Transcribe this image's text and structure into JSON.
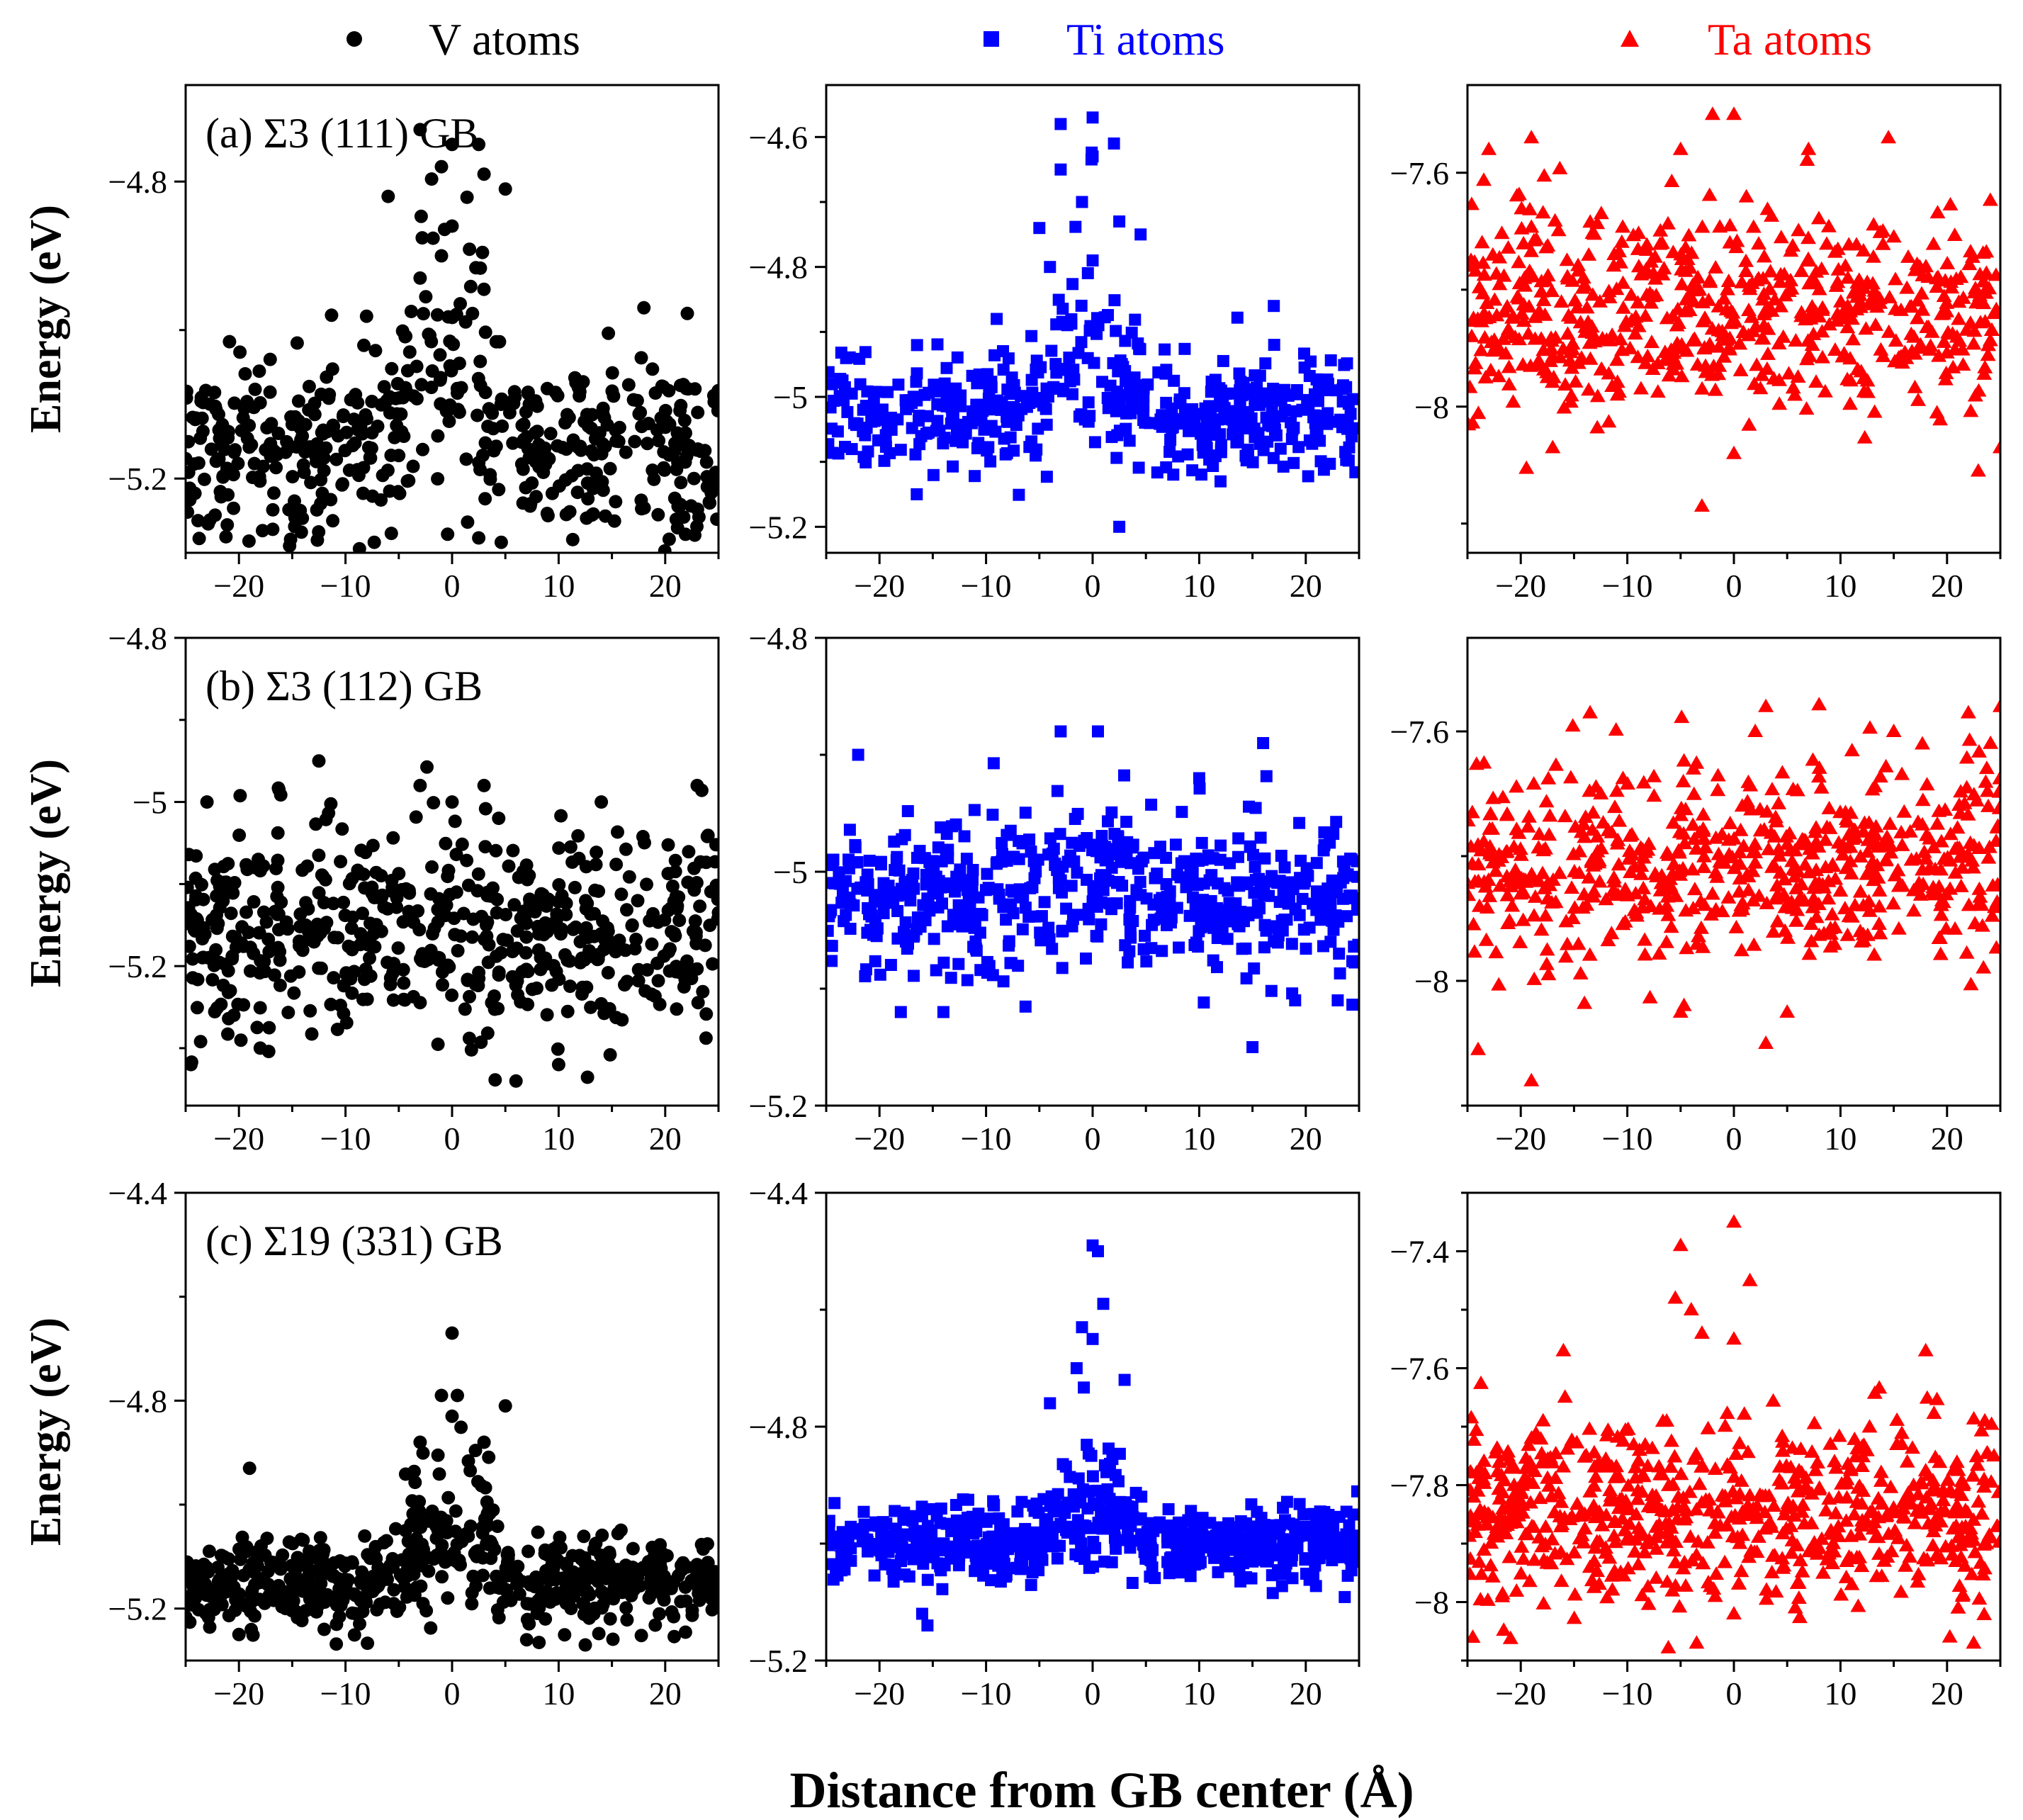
{
  "figure": {
    "xlabel": "Distance from GB center (Å)",
    "ylabel": "Energy (eV)",
    "legend": [
      {
        "label": "V atoms",
        "color": "#000000",
        "marker": "circle"
      },
      {
        "label": "Ti atoms",
        "color": "#0000ff",
        "marker": "square"
      },
      {
        "label": "Ta atoms",
        "color": "#ff0000",
        "marker": "triangle"
      }
    ]
  },
  "chart_data": [
    {
      "type": "scatter",
      "row": 0,
      "col": 0,
      "annotation": "(a) Σ3 (111) GB",
      "series_name": "V atoms",
      "color": "#000000",
      "marker": "circle",
      "xlim": [
        -25,
        25
      ],
      "ylim": [
        -5.3,
        -4.67
      ],
      "yticks": [
        -5.2,
        -4.8
      ],
      "xticks": [
        -20,
        -10,
        0,
        10,
        20
      ],
      "baseline": -5.16,
      "spread": 0.06,
      "peak_height": 0.38,
      "peak_width": 2.8,
      "n_points": 520,
      "highlights": [
        [
          -3,
          -4.73
        ],
        [
          0,
          -4.75
        ],
        [
          2.5,
          -4.75
        ],
        [
          -1,
          -4.78
        ],
        [
          3,
          -4.79
        ],
        [
          -6,
          -4.82
        ],
        [
          5,
          -4.81
        ],
        [
          -1,
          -4.9
        ],
        [
          0,
          -4.86
        ],
        [
          -3,
          -4.93
        ],
        [
          2.5,
          -5.28
        ],
        [
          9,
          -5.25
        ],
        [
          18,
          -4.97
        ]
      ]
    },
    {
      "type": "scatter",
      "row": 0,
      "col": 1,
      "annotation": "",
      "series_name": "Ti atoms",
      "color": "#0000ff",
      "marker": "square",
      "xlim": [
        -25,
        25
      ],
      "ylim": [
        -5.24,
        -4.52
      ],
      "yticks": [
        -5.2,
        -5.0,
        -4.8,
        -4.6
      ],
      "xticks": [
        -20,
        -10,
        0,
        10,
        20
      ],
      "baseline": -5.03,
      "spread": 0.045,
      "peak_height": 0.38,
      "peak_width": 2.6,
      "n_points": 520,
      "highlights": [
        [
          -3,
          -4.58
        ],
        [
          0,
          -4.57
        ],
        [
          2,
          -4.61
        ],
        [
          -3,
          -4.65
        ],
        [
          0,
          -4.63
        ],
        [
          -1,
          -4.7
        ],
        [
          -5,
          -4.74
        ],
        [
          2.5,
          -4.73
        ],
        [
          4.5,
          -4.75
        ],
        [
          -4,
          -4.8
        ],
        [
          0,
          -4.79
        ],
        [
          -9,
          -4.88
        ],
        [
          2.5,
          -5.2
        ],
        [
          12,
          -5.13
        ],
        [
          17,
          -4.86
        ]
      ]
    },
    {
      "type": "scatter",
      "row": 0,
      "col": 2,
      "annotation": "",
      "series_name": "Ta atoms",
      "color": "#ff0000",
      "marker": "triangle",
      "xlim": [
        -25,
        25
      ],
      "ylim": [
        -8.25,
        -7.45
      ],
      "yticks": [
        -8.0,
        -7.6
      ],
      "xticks": [
        -20,
        -10,
        0,
        10,
        20
      ],
      "baseline": -7.84,
      "spread": 0.085,
      "peak_height": 0.0,
      "peak_width": 3,
      "n_points": 620,
      "highlights": [
        [
          -2,
          -7.5
        ],
        [
          0,
          -7.5
        ],
        [
          -19,
          -7.54
        ],
        [
          -23,
          -7.56
        ],
        [
          14.5,
          -7.54
        ],
        [
          7,
          -7.56
        ],
        [
          -5,
          -7.56
        ],
        [
          -3,
          -8.17
        ],
        [
          -17,
          -8.07
        ],
        [
          0,
          -8.08
        ],
        [
          25,
          -8.07
        ]
      ]
    },
    {
      "type": "scatter",
      "row": 1,
      "col": 0,
      "annotation": "(b) Σ3 (112) GB",
      "series_name": "V atoms",
      "color": "#000000",
      "marker": "circle",
      "xlim": [
        -25,
        25
      ],
      "ylim": [
        -5.37,
        -4.8
      ],
      "yticks": [
        -5.2,
        -5.0,
        -4.8
      ],
      "xticks": [
        -20,
        -10,
        0,
        10,
        20
      ],
      "baseline": -5.15,
      "spread": 0.065,
      "peak_height": 0.0,
      "peak_width": 3,
      "n_points": 560,
      "highlights": [
        [
          -12.5,
          -4.95
        ],
        [
          -3,
          -4.98
        ],
        [
          3,
          -4.98
        ],
        [
          -23,
          -5.0
        ],
        [
          0,
          -5.0
        ],
        [
          14,
          -5.0
        ],
        [
          23,
          -4.98
        ],
        [
          6,
          -5.34
        ],
        [
          10,
          -5.32
        ],
        [
          -24.5,
          -5.32
        ],
        [
          -18,
          -5.3
        ]
      ]
    },
    {
      "type": "scatter",
      "row": 1,
      "col": 1,
      "annotation": "",
      "series_name": "Ti atoms",
      "color": "#0000ff",
      "marker": "square",
      "xlim": [
        -25,
        25
      ],
      "ylim": [
        -5.2,
        -4.8
      ],
      "yticks": [
        -5.2,
        -5.0,
        -4.8
      ],
      "xticks": [
        -20,
        -10,
        0,
        10,
        20
      ],
      "baseline": -5.02,
      "spread": 0.033,
      "peak_height": 0.03,
      "peak_width": 4,
      "n_points": 580,
      "highlights": [
        [
          -3,
          -4.88
        ],
        [
          0.5,
          -4.88
        ],
        [
          16,
          -4.89
        ],
        [
          -22,
          -4.9
        ],
        [
          10,
          -4.92
        ],
        [
          -18,
          -5.12
        ],
        [
          -14,
          -5.12
        ],
        [
          15,
          -5.15
        ],
        [
          19,
          -5.11
        ],
        [
          23,
          -5.11
        ]
      ]
    },
    {
      "type": "scatter",
      "row": 1,
      "col": 2,
      "annotation": "",
      "series_name": "Ta atoms",
      "color": "#ff0000",
      "marker": "triangle",
      "xlim": [
        -25,
        25
      ],
      "ylim": [
        -8.2,
        -7.45
      ],
      "yticks": [
        -8.0,
        -7.6
      ],
      "xticks": [
        -20,
        -10,
        0,
        10,
        20
      ],
      "baseline": -7.81,
      "spread": 0.085,
      "peak_height": 0.0,
      "peak_width": 3,
      "n_points": 600,
      "highlights": [
        [
          3,
          -7.56
        ],
        [
          -13.5,
          -7.57
        ],
        [
          25,
          -7.56
        ],
        [
          2,
          -7.6
        ],
        [
          15,
          -7.6
        ],
        [
          22,
          -7.57
        ],
        [
          -19,
          -8.16
        ],
        [
          -24,
          -8.11
        ],
        [
          3,
          -8.1
        ],
        [
          5,
          -8.05
        ],
        [
          -5,
          -8.05
        ]
      ]
    },
    {
      "type": "scatter",
      "row": 2,
      "col": 0,
      "annotation": "(c) Σ19 (331) GB",
      "series_name": "V atoms",
      "color": "#000000",
      "marker": "circle",
      "xlim": [
        -25,
        25
      ],
      "ylim": [
        -5.3,
        -4.4
      ],
      "yticks": [
        -5.2,
        -4.8,
        -4.4
      ],
      "xticks": [
        -20,
        -10,
        0,
        10,
        20
      ],
      "baseline": -5.15,
      "spread": 0.045,
      "peak_height": 0.3,
      "peak_width": 3.2,
      "n_points": 620,
      "highlights": [
        [
          0,
          -4.67
        ],
        [
          -1,
          -4.79
        ],
        [
          0.5,
          -4.79
        ],
        [
          5,
          -4.81
        ],
        [
          0,
          -4.83
        ],
        [
          -3,
          -4.88
        ],
        [
          3,
          -4.88
        ],
        [
          -19,
          -4.93
        ],
        [
          12.5,
          -5.27
        ],
        [
          -20,
          -5.25
        ],
        [
          7,
          -5.26
        ],
        [
          -12,
          -5.24
        ]
      ]
    },
    {
      "type": "scatter",
      "row": 2,
      "col": 1,
      "annotation": "",
      "series_name": "Ti atoms",
      "color": "#0000ff",
      "marker": "square",
      "xlim": [
        -25,
        25
      ],
      "ylim": [
        -5.2,
        -4.4
      ],
      "yticks": [
        -5.2,
        -4.8,
        -4.4
      ],
      "xticks": [
        -20,
        -10,
        0,
        10,
        20
      ],
      "baseline": -5.0,
      "spread": 0.03,
      "peak_height": 0.2,
      "peak_width": 2.6,
      "n_points": 680,
      "highlights": [
        [
          0,
          -4.49
        ],
        [
          0.5,
          -4.5
        ],
        [
          1,
          -4.59
        ],
        [
          -1,
          -4.63
        ],
        [
          0,
          -4.65
        ],
        [
          -1.5,
          -4.7
        ],
        [
          3,
          -4.72
        ],
        [
          -4,
          -4.76
        ],
        [
          -15.5,
          -5.14
        ],
        [
          -16,
          -5.12
        ]
      ]
    },
    {
      "type": "scatter",
      "row": 2,
      "col": 2,
      "annotation": "",
      "series_name": "Ta atoms",
      "color": "#ff0000",
      "marker": "triangle",
      "xlim": [
        -25,
        25
      ],
      "ylim": [
        -8.1,
        -7.3
      ],
      "yticks": [
        -8.0,
        -7.8,
        -7.6,
        -7.4
      ],
      "xticks": [
        -20,
        -10,
        0,
        10,
        20
      ],
      "baseline": -7.85,
      "spread": 0.08,
      "peak_height": 0.0,
      "peak_width": 3,
      "n_points": 680,
      "highlights": [
        [
          0,
          -7.35
        ],
        [
          -5,
          -7.39
        ],
        [
          1.5,
          -7.45
        ],
        [
          -5.5,
          -7.48
        ],
        [
          -4,
          -7.5
        ],
        [
          -3,
          -7.54
        ],
        [
          0,
          -7.55
        ],
        [
          18,
          -7.57
        ],
        [
          -16,
          -7.57
        ],
        [
          -3.5,
          -8.07
        ],
        [
          0,
          -8.02
        ],
        [
          22.5,
          -8.07
        ],
        [
          -24.5,
          -8.06
        ]
      ]
    }
  ]
}
